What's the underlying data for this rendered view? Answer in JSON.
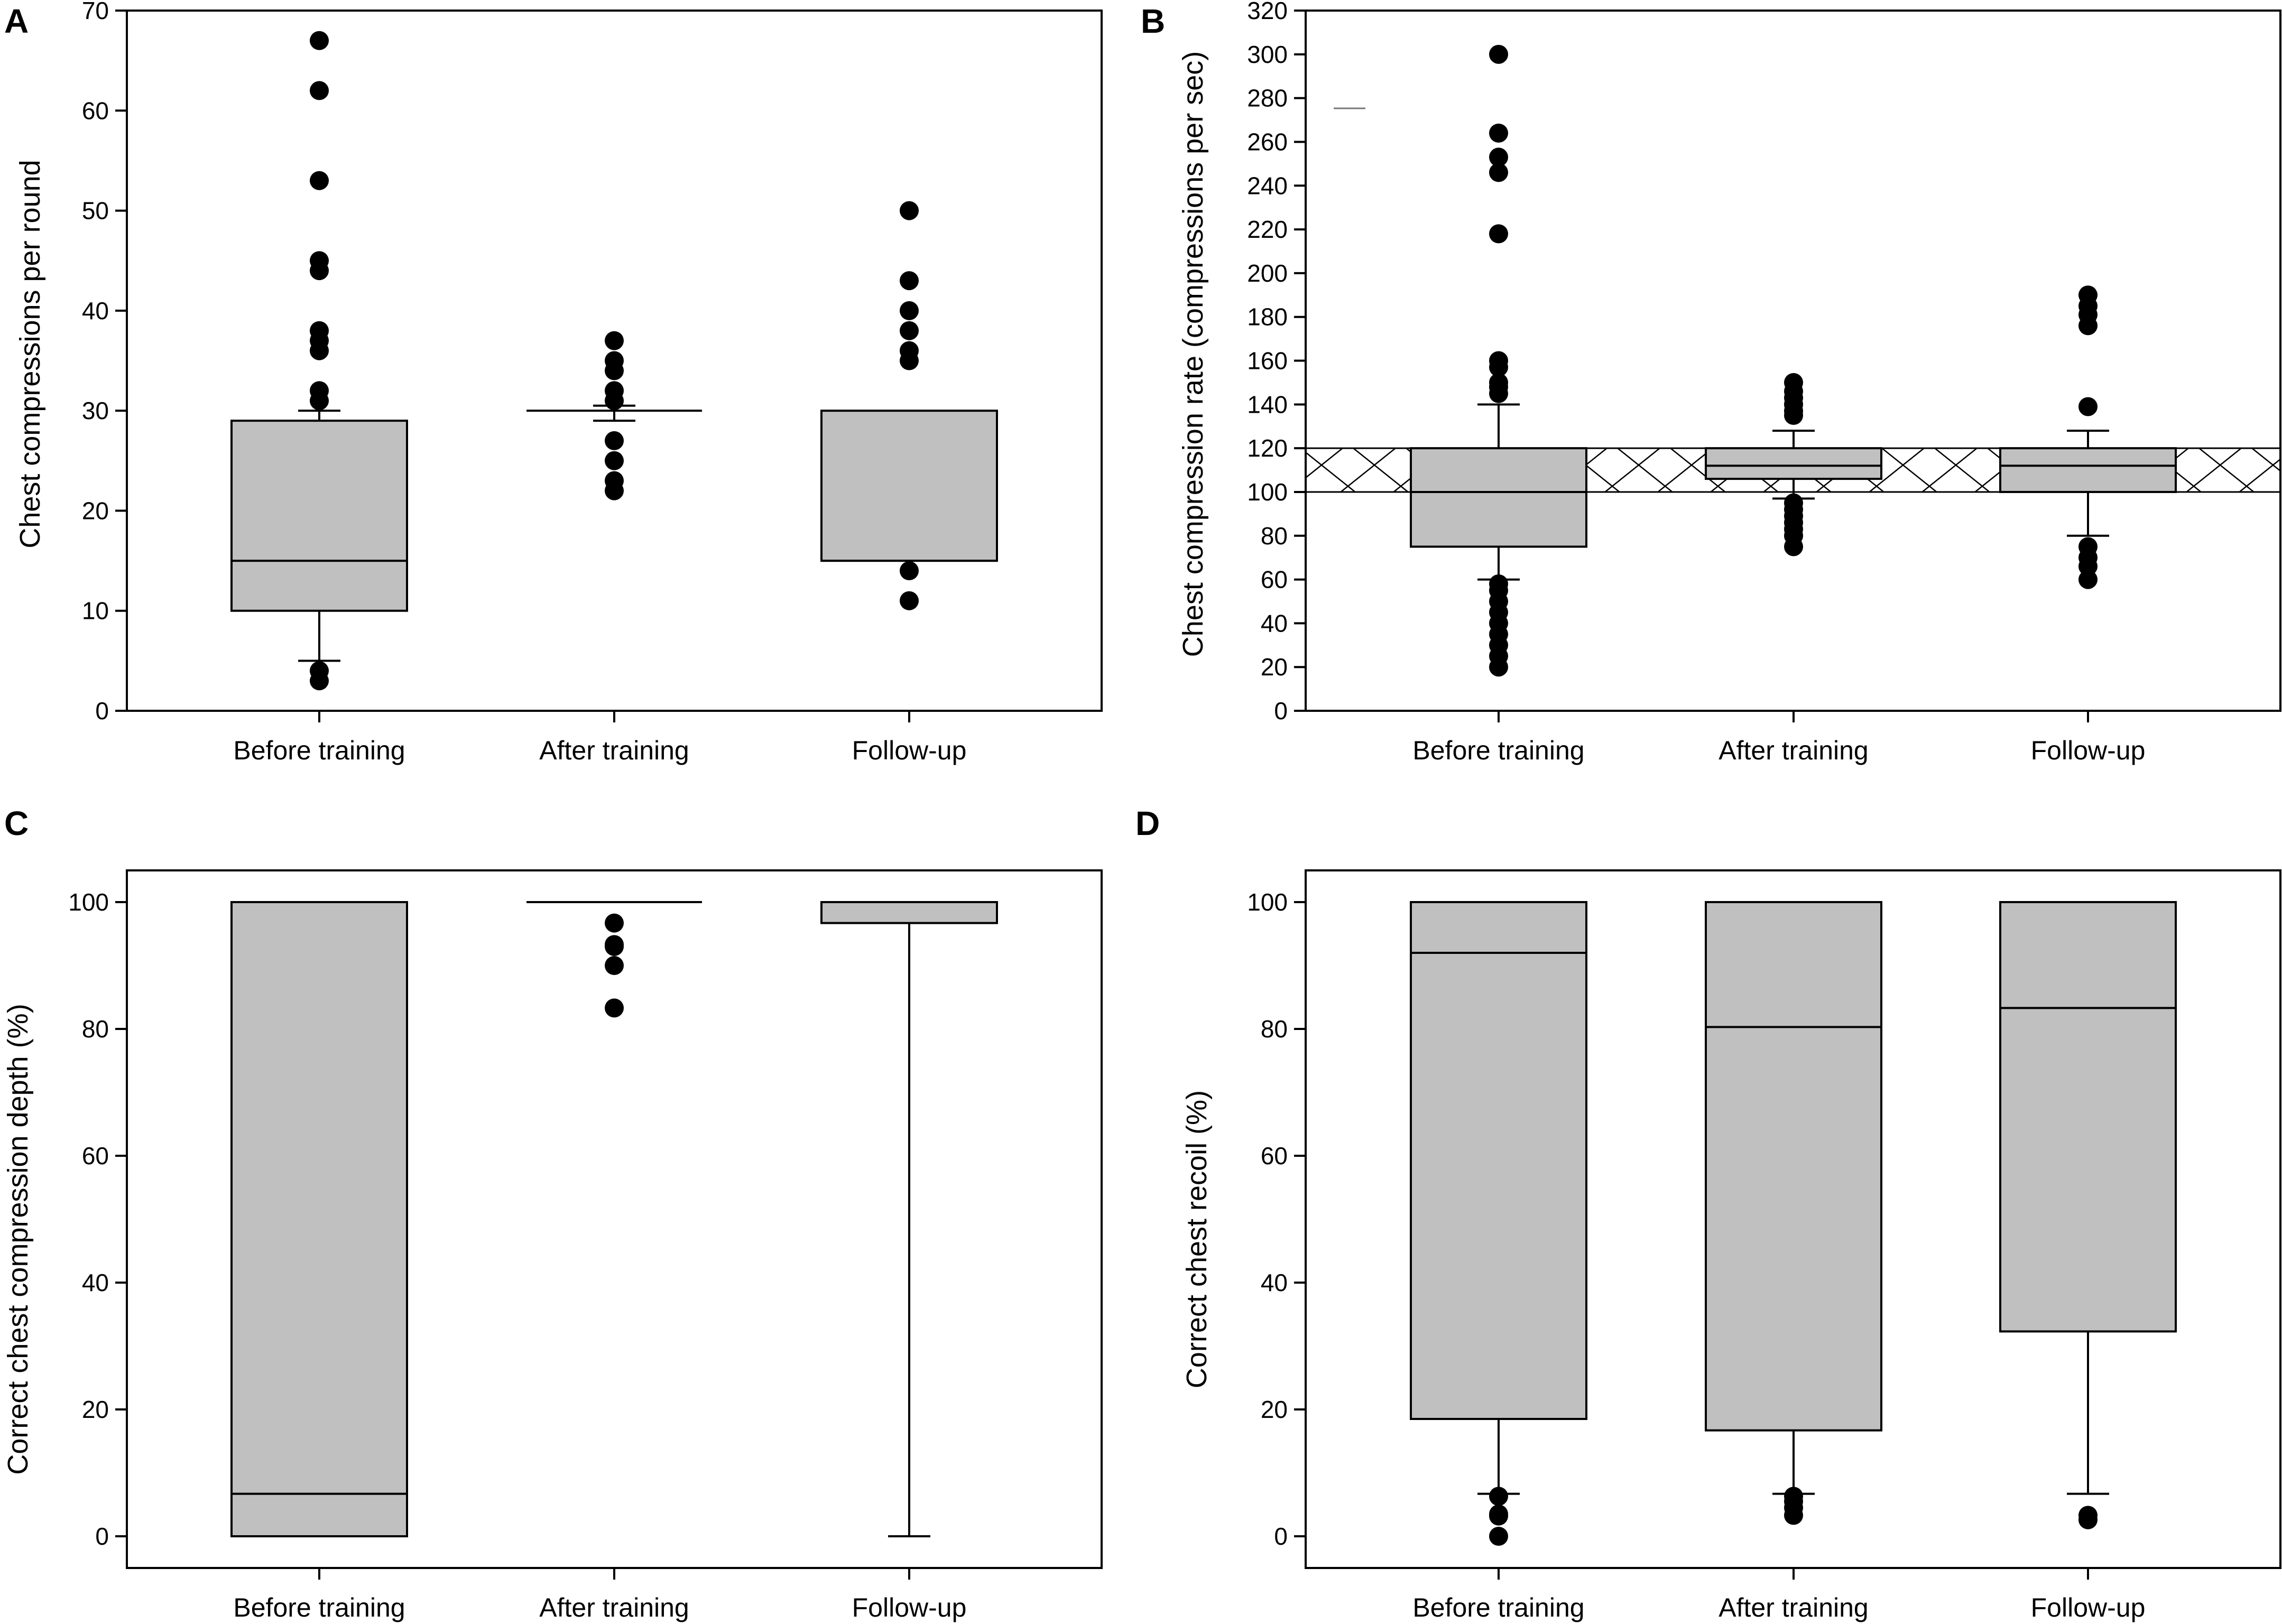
{
  "chart_data": [
    {
      "panel": "A",
      "type": "box",
      "title": "",
      "xlabel": "",
      "ylabel": "Chest compressions per round",
      "ylim": [
        0,
        70
      ],
      "yticks": [
        0,
        10,
        20,
        30,
        40,
        50,
        60,
        70
      ],
      "categories": [
        "Before training",
        "After training",
        "Follow-up"
      ],
      "boxes": [
        {
          "q1": 10,
          "median": 15,
          "q3": 29,
          "whisker_low": 5,
          "whisker_high": 30,
          "outliers": [
            67,
            62,
            53,
            45,
            44,
            38,
            37,
            36,
            32,
            31,
            4,
            3
          ]
        },
        {
          "q1": 30,
          "median": 30,
          "q3": 30,
          "whisker_low": 29,
          "whisker_high": 30.5,
          "outliers": [
            37,
            35,
            34,
            32,
            31,
            27,
            25,
            23,
            22
          ]
        },
        {
          "q1": 15,
          "median": 15,
          "q3": 30,
          "whisker_low": null,
          "whisker_high": null,
          "outliers": [
            50,
            43,
            40,
            38,
            36,
            35,
            14,
            11
          ]
        }
      ]
    },
    {
      "panel": "B",
      "type": "box",
      "title": "",
      "xlabel": "",
      "ylabel": "Chest compression rate (compressions per sec)",
      "ylim": [
        0,
        320
      ],
      "yticks": [
        0,
        20,
        40,
        60,
        80,
        100,
        120,
        140,
        160,
        180,
        200,
        220,
        240,
        260,
        280,
        300,
        320
      ],
      "reference_band": [
        100,
        120
      ],
      "categories": [
        "Before training",
        "After training",
        "Follow-up"
      ],
      "boxes": [
        {
          "q1": 75,
          "median": 100,
          "q3": 120,
          "whisker_low": 60,
          "whisker_high": 140,
          "outliers": [
            300,
            264,
            253,
            246,
            218,
            160,
            157,
            150,
            148,
            145,
            58,
            55,
            50,
            45,
            40,
            35,
            30,
            25,
            20
          ]
        },
        {
          "q1": 106,
          "median": 112,
          "q3": 120,
          "whisker_low": 97,
          "whisker_high": 128,
          "outliers": [
            150,
            146,
            143,
            140,
            137,
            135,
            95,
            92,
            89,
            86,
            83,
            80,
            75
          ]
        },
        {
          "q1": 100,
          "median": 112,
          "q3": 120,
          "whisker_low": 80,
          "whisker_high": 128,
          "outliers": [
            190,
            185,
            181,
            176,
            139,
            75,
            70,
            66,
            60
          ]
        }
      ]
    },
    {
      "panel": "C",
      "type": "box",
      "title": "",
      "xlabel": "",
      "ylabel": "Correct chest compression depth (%)",
      "ylim": [
        -5,
        105
      ],
      "yticks": [
        0,
        20,
        40,
        60,
        80,
        100
      ],
      "categories": [
        "Before training",
        "After training",
        "Follow-up"
      ],
      "boxes": [
        {
          "q1": 0,
          "median": 6.7,
          "q3": 100,
          "whisker_low": null,
          "whisker_high": null,
          "outliers": []
        },
        {
          "q1": 100,
          "median": 100,
          "q3": 100,
          "whisker_low": null,
          "whisker_high": null,
          "outliers": [
            96.7,
            93.3,
            93,
            90,
            83.3
          ]
        },
        {
          "q1": 96.7,
          "median": 100,
          "q3": 100,
          "whisker_low": 0,
          "whisker_high": null,
          "outliers": []
        }
      ]
    },
    {
      "panel": "D",
      "type": "box",
      "title": "",
      "xlabel": "",
      "ylabel": "Correct chest recoil (%)",
      "ylim": [
        -5,
        105
      ],
      "yticks": [
        0,
        20,
        40,
        60,
        80,
        100
      ],
      "categories": [
        "Before training",
        "After training",
        "Follow-up"
      ],
      "boxes": [
        {
          "q1": 18.5,
          "median": 92,
          "q3": 100,
          "whisker_low": 6.7,
          "whisker_high": null,
          "outliers": [
            6.3,
            3.5,
            3.2,
            0
          ]
        },
        {
          "q1": 16.7,
          "median": 80.3,
          "q3": 100,
          "whisker_low": 6.7,
          "whisker_high": null,
          "outliers": [
            6.3,
            5.5,
            4.5,
            3.3
          ]
        },
        {
          "q1": 32.3,
          "median": 83.3,
          "q3": 100,
          "whisker_low": 6.7,
          "whisker_high": null,
          "outliers": [
            3.3,
            2.6
          ]
        }
      ]
    }
  ]
}
